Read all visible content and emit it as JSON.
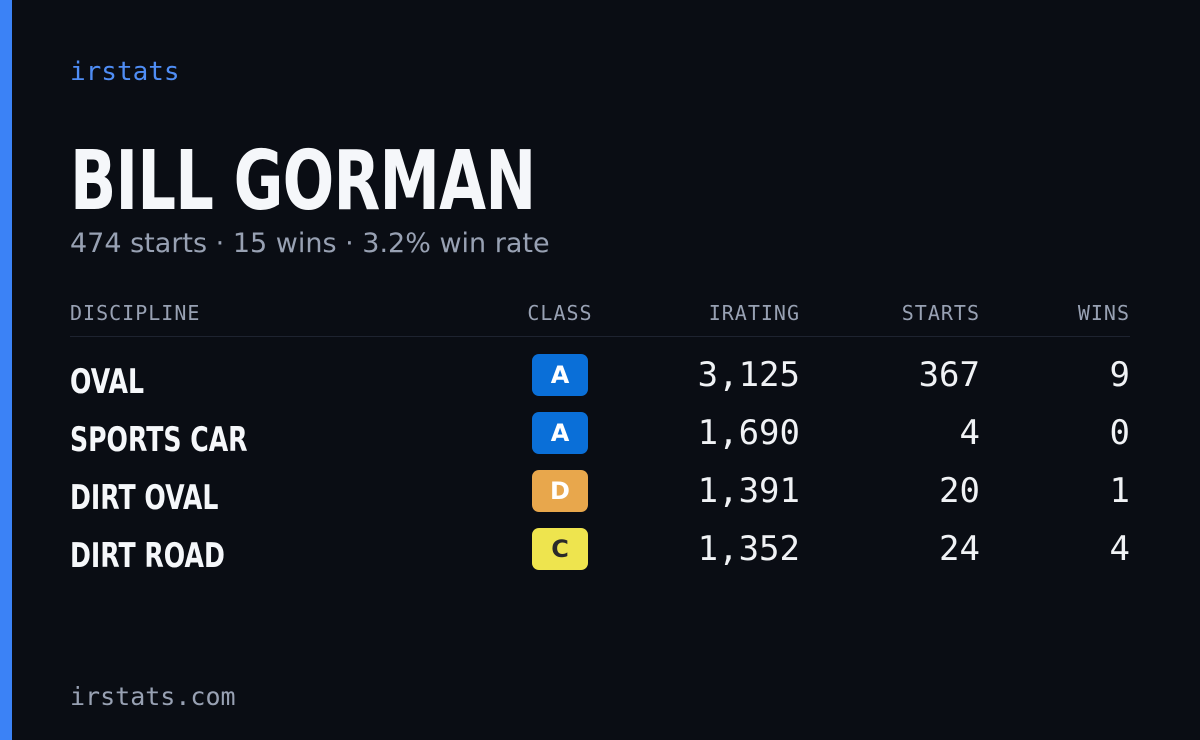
{
  "brand": "irstats",
  "driver": {
    "name": "BILL GORMAN",
    "summary": "474 starts · 15 wins · 3.2% win rate"
  },
  "table": {
    "headers": [
      "DISCIPLINE",
      "CLASS",
      "IRATING",
      "STARTS",
      "WINS"
    ],
    "rows": [
      {
        "discipline": "OVAL",
        "class": "A",
        "badge_color": "#0a6fd8",
        "badge_text_color": "#ffffff",
        "irating": "3,125",
        "starts": 367,
        "wins": 9
      },
      {
        "discipline": "SPORTS CAR",
        "class": "A",
        "badge_color": "#0a6fd8",
        "badge_text_color": "#ffffff",
        "irating": "1,690",
        "starts": 4,
        "wins": 0
      },
      {
        "discipline": "DIRT OVAL",
        "class": "D",
        "badge_color": "#e8a74c",
        "badge_text_color": "#ffffff",
        "irating": "1,391",
        "starts": 20,
        "wins": 1
      },
      {
        "discipline": "DIRT ROAD",
        "class": "C",
        "badge_color": "#eee44e",
        "badge_text_color": "#2a2a2a",
        "irating": "1,352",
        "starts": 24,
        "wins": 4
      }
    ]
  },
  "footer": "irstats.com"
}
